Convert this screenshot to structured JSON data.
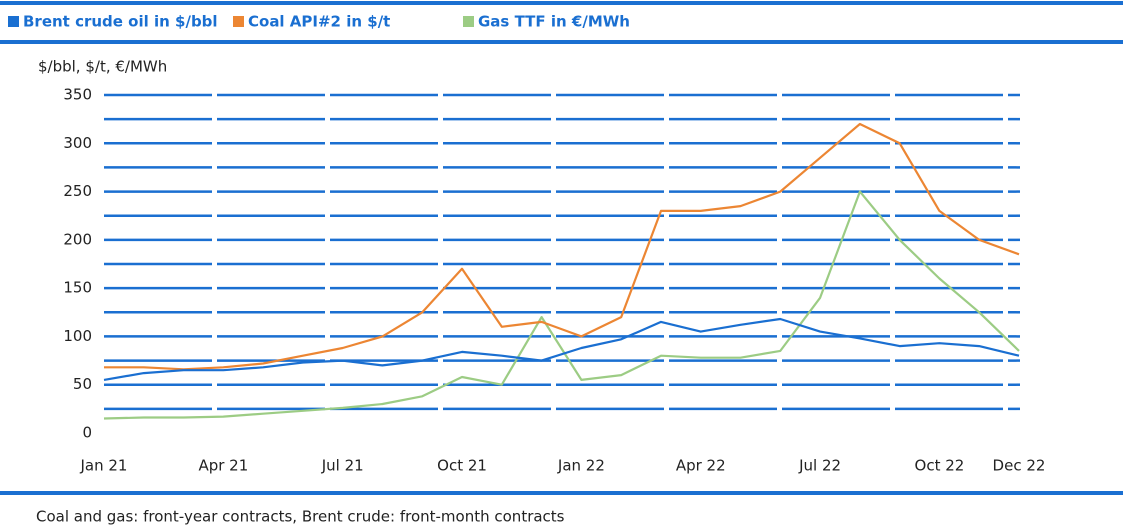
{
  "chart_data": {
    "type": "line",
    "y_label": "$/bbl, $/t, €/MWh",
    "note": "Coal and gas: front-year contracts, Brent crude: front-month contracts",
    "categories": [
      "Jan 21",
      null,
      null,
      "Apr 21",
      null,
      null,
      "Jul 21",
      null,
      null,
      "Oct 21",
      null,
      null,
      "Jan 22",
      null,
      null,
      "Apr 22",
      null,
      null,
      "Jul 22",
      null,
      null,
      "Oct 22",
      null,
      "Dec 22"
    ],
    "series": [
      {
        "name": "Brent crude oil in $/bbl",
        "color": "#1a6fd1",
        "values": [
          55,
          62,
          65,
          65,
          68,
          73,
          75,
          70,
          75,
          84,
          80,
          75,
          88,
          97,
          115,
          105,
          112,
          118,
          105,
          98,
          90,
          93,
          90,
          80
        ]
      },
      {
        "name": "Coal API#2 in $/t",
        "color": "#ec8633",
        "values": [
          68,
          68,
          66,
          68,
          72,
          80,
          88,
          100,
          125,
          170,
          110,
          115,
          100,
          120,
          230,
          230,
          235,
          250,
          285,
          320,
          300,
          230,
          200,
          185
        ]
      },
      {
        "name": "Gas TTF in €/MWh",
        "color": "#9ccc84",
        "values": [
          15,
          16,
          16,
          17,
          20,
          23,
          26,
          30,
          38,
          58,
          50,
          120,
          55,
          60,
          80,
          78,
          78,
          85,
          140,
          250,
          200,
          160,
          125,
          85
        ]
      }
    ],
    "ylim": [
      0,
      350
    ],
    "yticks": [
      0,
      50,
      100,
      150,
      200,
      250,
      300,
      350
    ],
    "yminor": [
      25,
      75,
      125,
      175,
      225,
      275,
      325
    ],
    "grid": true,
    "legend": "top"
  }
}
